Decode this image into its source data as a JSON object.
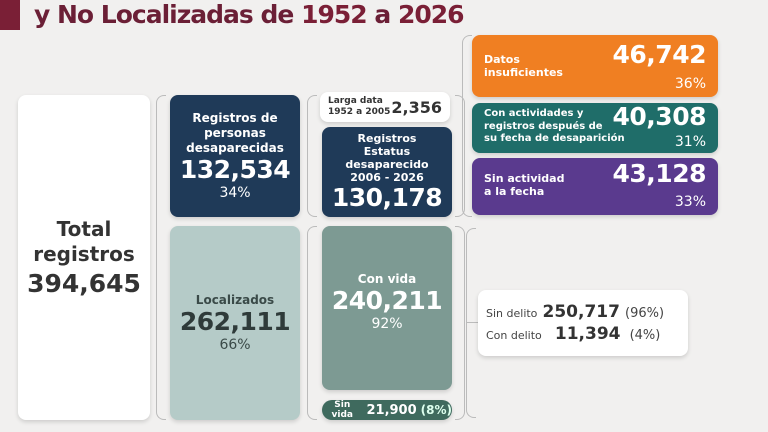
{
  "title": {
    "prefix": "y No Localizadas de ",
    "year_start": "1952",
    "middle": " a ",
    "year_end": "2026"
  },
  "total": {
    "label1": "Total",
    "label2": "registros",
    "value": "394,645"
  },
  "desaparecidas": {
    "label": "Registros de personas desaparecidas",
    "value": "132,534",
    "pct": "34%"
  },
  "localizados": {
    "label": "Localizados",
    "value": "262,111",
    "pct": "66%"
  },
  "larga_data": {
    "label1": "Larga data",
    "label2": "1952 a 2005",
    "value": "2,356"
  },
  "estatus": {
    "label1": "Registros",
    "label2": "Estatus",
    "label3": "desaparecido",
    "label4": "2006 - 2026",
    "value": "130,178"
  },
  "con_vida": {
    "label": "Con vida",
    "value": "240,211",
    "pct": "92%"
  },
  "sin_vida": {
    "label": "Sin vida",
    "value": "21,900",
    "pct": "(8%)"
  },
  "datos_insuf": {
    "label1": "Datos",
    "label2": "insuficientes",
    "value": "46,742",
    "pct": "36%",
    "color": "#f07f22"
  },
  "con_actividades": {
    "label1": "Con actividades y",
    "label2": "registros después de",
    "label3": "su fecha de desaparición",
    "value": "40,308",
    "pct": "31%",
    "color": "#1f6d69"
  },
  "sin_actividad": {
    "label1": "Sin actividad",
    "label2": "a la fecha",
    "value": "43,128",
    "pct": "33%",
    "color": "#5a3a8e"
  },
  "delito": {
    "sin_label": "Sin delito",
    "sin_value": "250,717",
    "sin_pct": "(96%)",
    "con_label": "Con delito",
    "con_value": "11,394",
    "con_pct": "(4%)"
  }
}
